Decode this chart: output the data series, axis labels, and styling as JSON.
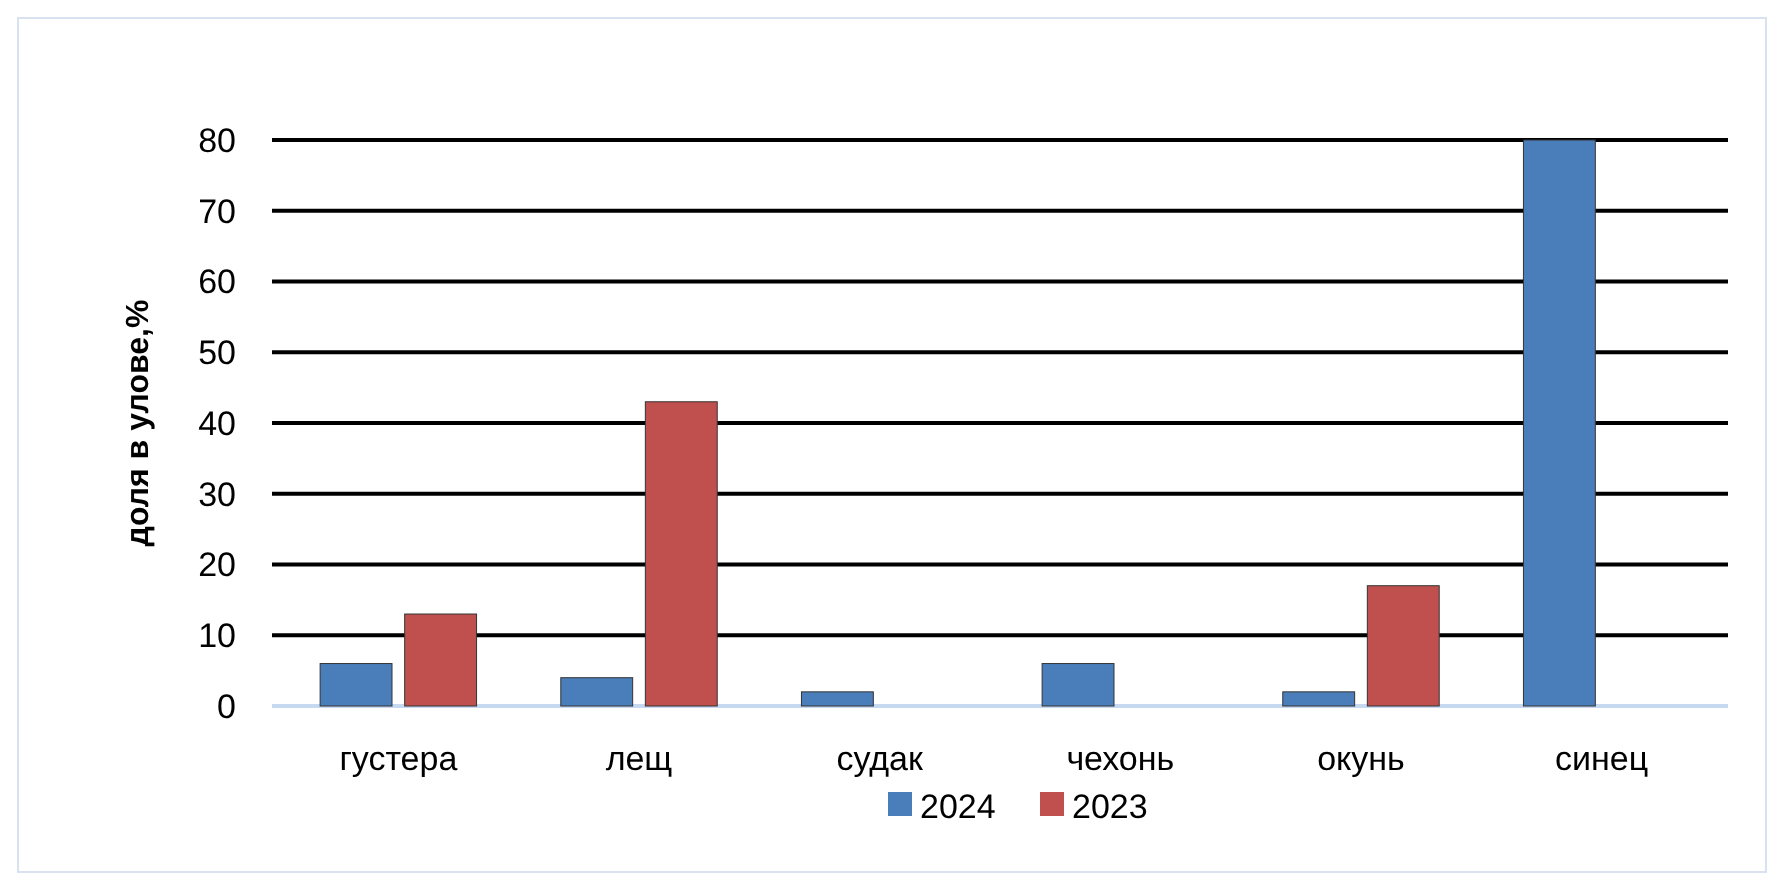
{
  "chart_data": {
    "type": "bar",
    "ylabel": "доля в улове,%",
    "categories": [
      "густера",
      "лещ",
      "судак",
      "чехонь",
      "окунь",
      "синец"
    ],
    "series": [
      {
        "name": "2024",
        "color": "#4a7ebb",
        "values": [
          6,
          4,
          2,
          6,
          2,
          80
        ]
      },
      {
        "name": "2023",
        "color": "#c0504d",
        "values": [
          13,
          43,
          null,
          null,
          17,
          null
        ]
      }
    ],
    "ylim": [
      0,
      80
    ],
    "yticks": [
      0,
      10,
      20,
      30,
      40,
      50,
      60,
      70,
      80
    ],
    "grid": "y",
    "legend": "bottom"
  }
}
